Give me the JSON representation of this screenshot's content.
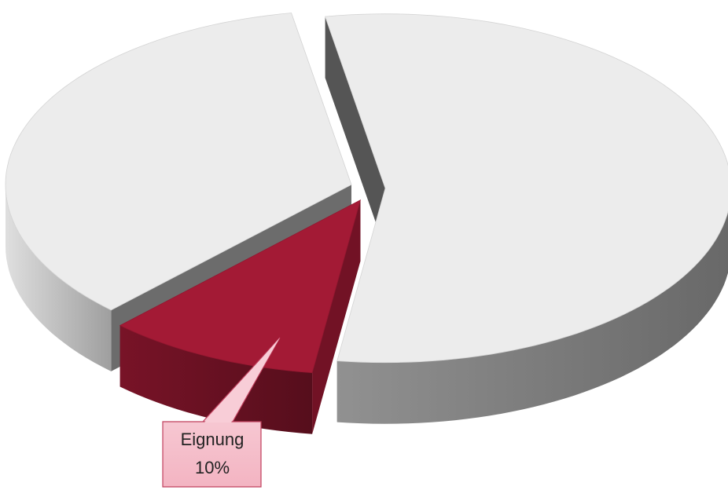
{
  "chart_data": {
    "type": "pie",
    "categories": [
      null,
      "Eignung",
      null
    ],
    "values": [
      55,
      10,
      35
    ],
    "value_labels": [
      null,
      "10%",
      null
    ],
    "colors": [
      "#ececec",
      "#a31a35",
      "#ececec"
    ]
  }
}
